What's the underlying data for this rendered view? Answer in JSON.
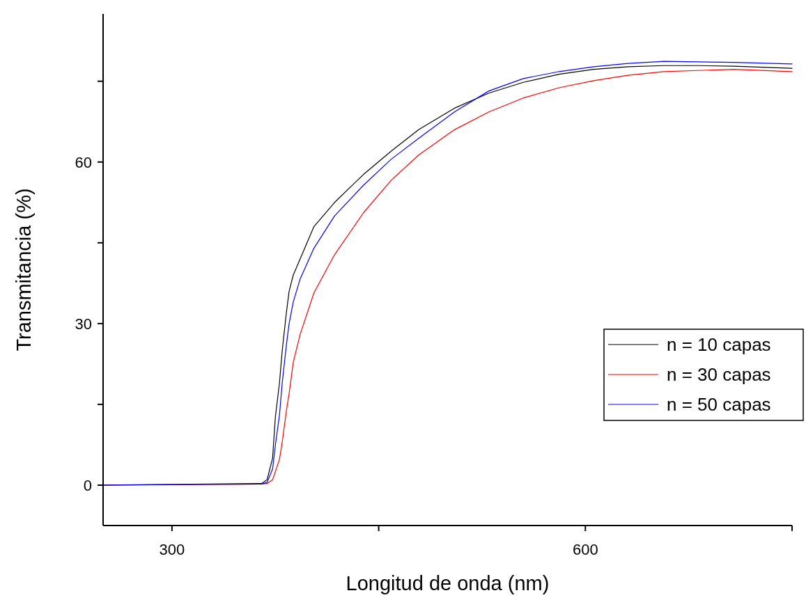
{
  "chart_data": {
    "type": "line",
    "xlabel": "Longitud de onda (nm)",
    "ylabel": "Transmitancia (%)",
    "xlim": [
      250,
      750
    ],
    "xticks": [
      300,
      {
        "value": 450,
        "label": null
      },
      600,
      {
        "value": 750,
        "label": null
      }
    ],
    "ylim": [
      -7.5,
      87.5
    ],
    "yticks": [
      0,
      {
        "value": 15,
        "label": null
      },
      30,
      {
        "value": 45,
        "label": null
      },
      60,
      {
        "value": 75,
        "label": null
      }
    ],
    "grid": false,
    "legend": "right",
    "line_style": "solid",
    "x": [
      250,
      365,
      369,
      373,
      375,
      378,
      380,
      383,
      385,
      388,
      393,
      403,
      418,
      439,
      459,
      479,
      505,
      530,
      555,
      581,
      606,
      631,
      657,
      682,
      708,
      750
    ],
    "series": [
      {
        "name": "n = 10 capas",
        "color": "#000000",
        "values": [
          0,
          0.3,
          1,
          5,
          12.6,
          19,
          25,
          32,
          36,
          39,
          42,
          48,
          52.5,
          57.7,
          62,
          66,
          70,
          72.8,
          74.8,
          76.3,
          77.2,
          77.7,
          77.9,
          77.9,
          77.8,
          77.4
        ]
      },
      {
        "name": "n = 30 capas",
        "color": "#ff0000",
        "values": [
          0,
          0.2,
          0.3,
          1,
          2.5,
          4.8,
          8,
          13.8,
          17,
          22.8,
          28,
          35.7,
          42.8,
          50.6,
          56.6,
          61.3,
          66,
          69.3,
          71.9,
          73.8,
          75.1,
          76.1,
          76.8,
          77,
          77.2,
          76.8
        ]
      },
      {
        "name": "n = 50 capas",
        "color": "#0000ff",
        "values": [
          0,
          0.2,
          0.5,
          3,
          7.4,
          13,
          19,
          26,
          30,
          34,
          38.3,
          44,
          50,
          55.7,
          60.5,
          64.4,
          69.3,
          73.2,
          75.5,
          76.8,
          77.7,
          78.3,
          78.7,
          78.6,
          78.5,
          78.2
        ]
      }
    ]
  }
}
